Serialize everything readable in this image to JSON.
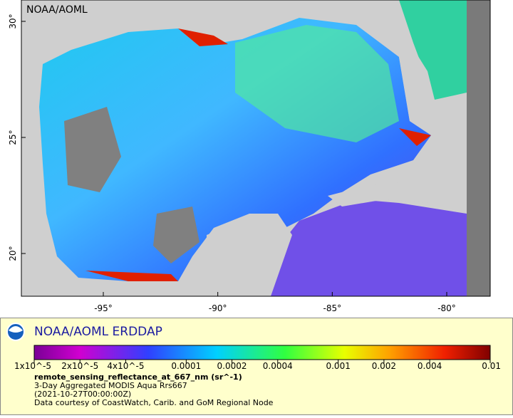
{
  "map": {
    "watermark": "NOAA/AOML",
    "lat_ticks": [
      {
        "value": 30,
        "label": "30°"
      },
      {
        "value": 25,
        "label": "25°"
      },
      {
        "value": 20,
        "label": "20°"
      }
    ],
    "lon_ticks": [
      {
        "value": -95,
        "label": "-95°"
      },
      {
        "value": -90,
        "label": "-90°"
      },
      {
        "value": -85,
        "label": "-85°"
      },
      {
        "value": -80,
        "label": "-80°"
      }
    ]
  },
  "legend": {
    "title": "NOAA/AOML ERDDAP",
    "colorbar": {
      "ticks": [
        {
          "value": 1e-05,
          "label": "1x10^-5"
        },
        {
          "value": 2e-05,
          "label": "2x10^-5"
        },
        {
          "value": 4e-05,
          "label": "4x10^-5"
        },
        0.0001,
        0.0002,
        0.0004,
        0.001,
        0.002,
        0.004,
        0.01
      ]
    },
    "variable": "remote_sensing_reflectance_at_667_nm (sr^-1)",
    "description": "3-Day Aggregated MODIS Aqua Rrs667",
    "time": "(2021-10-27T00:00:00Z)",
    "credit": "Data courtesy of CoastWatch, Carib. and GoM Regional Node"
  }
}
